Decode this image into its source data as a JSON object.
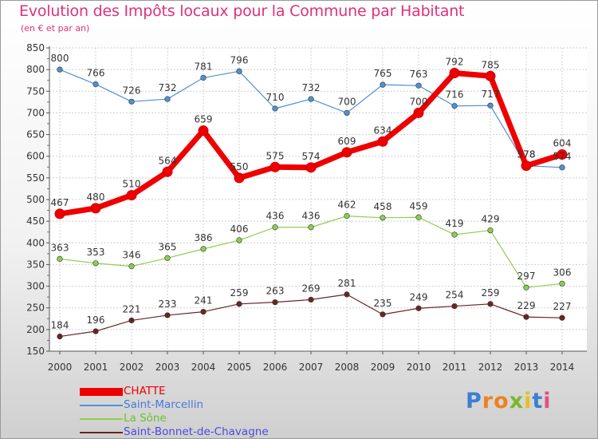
{
  "title": "Evolution des Impôts locaux pour la Commune par Habitant",
  "subtitle": "(en € et par an)",
  "logo": {
    "letters": [
      {
        "ch": "P",
        "color": "#3a7fd0"
      },
      {
        "ch": "r",
        "color": "#f08020"
      },
      {
        "ch": "o",
        "color": "#f08020"
      },
      {
        "ch": "x",
        "color": "#7ab82e"
      },
      {
        "ch": "i",
        "color": "#e8c020"
      },
      {
        "ch": "t",
        "color": "#3a7fd0"
      },
      {
        "ch": "i",
        "color": "#e05080"
      }
    ]
  },
  "chart_data": {
    "type": "line",
    "title": "Evolution des Impôts locaux pour la Commune par Habitant",
    "subtitle": "(en € et par an)",
    "xlabel": "",
    "ylabel": "",
    "x": [
      "2000",
      "2001",
      "2002",
      "2003",
      "2004",
      "2005",
      "2006",
      "2007",
      "2008",
      "2009",
      "2010",
      "2011",
      "2012",
      "2013",
      "2014"
    ],
    "ylim": [
      150,
      850
    ],
    "yticks": [
      150,
      200,
      250,
      300,
      350,
      400,
      450,
      500,
      550,
      600,
      650,
      700,
      750,
      800,
      850
    ],
    "grid": true,
    "legend_position": "bottom-left",
    "series": [
      {
        "name": "CHATTE",
        "color": "#ee0000",
        "width": 7,
        "values": [
          467,
          480,
          510,
          564,
          659,
          550,
          575,
          574,
          609,
          634,
          700,
          792,
          785,
          578,
          604
        ],
        "labels": [
          "467",
          "480",
          "510",
          "564",
          "659",
          "550",
          "575",
          "574",
          "609",
          "634",
          "700",
          "792",
          "785",
          "578",
          "604"
        ]
      },
      {
        "name": "Saint-Marcellin",
        "color": "#4f92d0",
        "width": 1.2,
        "values": [
          800,
          766,
          726,
          732,
          781,
          796,
          710,
          732,
          700,
          765,
          763,
          716,
          717,
          578,
          574
        ],
        "labels": [
          "800",
          "766",
          "726",
          "732",
          "781",
          "796",
          "710",
          "732",
          "700",
          "765",
          "763",
          "716",
          "717",
          "578",
          "574"
        ]
      },
      {
        "name": "La Sône",
        "color": "#8ccf4f",
        "width": 1.2,
        "values": [
          363,
          353,
          346,
          365,
          386,
          406,
          436,
          436,
          462,
          458,
          459,
          419,
          429,
          297,
          306
        ],
        "labels": [
          "363",
          "353",
          "346",
          "365",
          "386",
          "406",
          "436",
          "436",
          "462",
          "458",
          "459",
          "419",
          "429",
          "297",
          "306"
        ]
      },
      {
        "name": "Saint-Bonnet-de-Chavagne",
        "color": "#6b2424",
        "width": 1.2,
        "values": [
          184,
          196,
          221,
          233,
          241,
          259,
          263,
          269,
          281,
          235,
          249,
          254,
          259,
          229,
          227
        ],
        "labels": [
          "184",
          "196",
          "221",
          "233",
          "241",
          "259",
          "263",
          "269",
          "281",
          "235",
          "249",
          "254",
          "259",
          "229",
          "227"
        ]
      }
    ]
  }
}
